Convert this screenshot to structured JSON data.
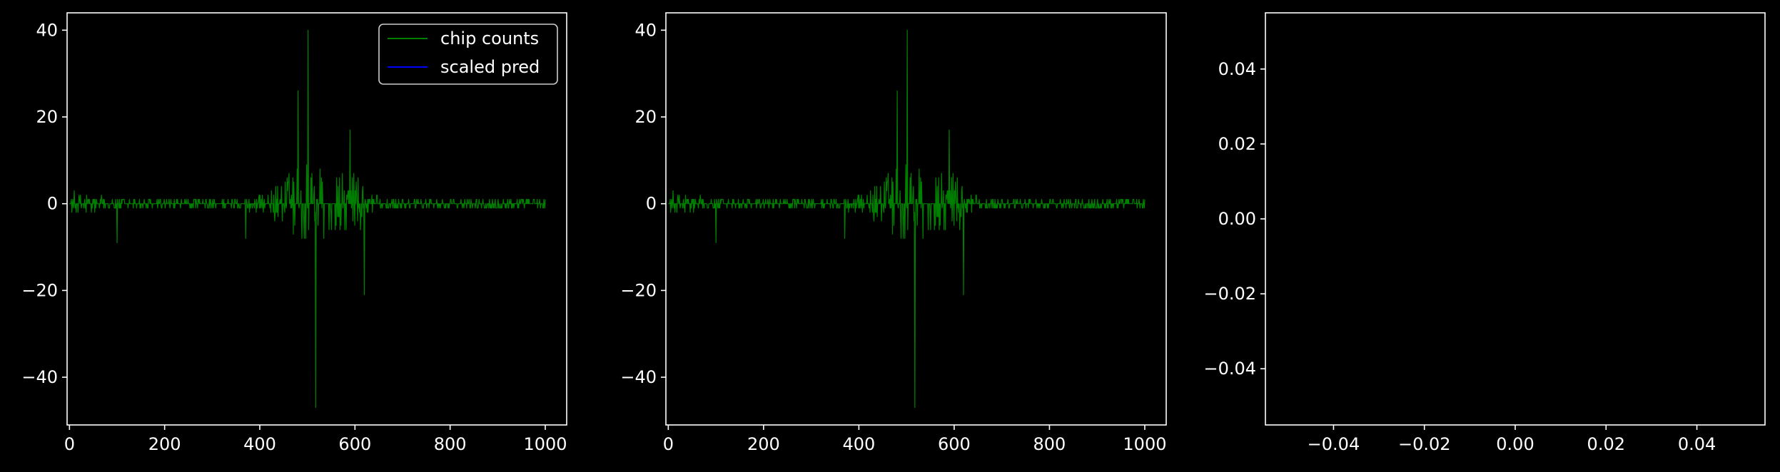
{
  "chart_data": [
    {
      "type": "line",
      "xlim": [
        -5,
        1045
      ],
      "ylim": [
        -51,
        44
      ],
      "xticks": [
        0,
        200,
        400,
        600,
        800,
        1000
      ],
      "xtick_labels": [
        "0",
        "200",
        "400",
        "600",
        "800",
        "1000"
      ],
      "yticks": [
        -40,
        -20,
        0,
        20,
        40
      ],
      "ytick_labels": [
        "−40",
        "−20",
        "0",
        "20",
        "40"
      ],
      "grid": false,
      "legend": {
        "placement": "top-right",
        "entries": [
          {
            "label": "chip counts",
            "color": "#008000"
          },
          {
            "label": "scaled pred",
            "color": "#0000ff"
          }
        ]
      },
      "series": [
        {
          "name": "chip counts",
          "color": "#008000",
          "n_points": 1000,
          "x_range": [
            0,
            1000
          ],
          "peaks": [
            {
              "x": 480,
              "y": 26
            },
            {
              "x": 502,
              "y": 40
            },
            {
              "x": 518,
              "y": -47
            },
            {
              "x": 590,
              "y": 17
            },
            {
              "x": 620,
              "y": -21
            },
            {
              "x": 370,
              "y": -8
            },
            {
              "x": 100,
              "y": -9
            }
          ]
        },
        {
          "name": "scaled pred",
          "color": "#0000ff",
          "values": []
        }
      ]
    },
    {
      "type": "line",
      "xlim": [
        -5,
        1045
      ],
      "ylim": [
        -51,
        44
      ],
      "xticks": [
        0,
        200,
        400,
        600,
        800,
        1000
      ],
      "xtick_labels": [
        "0",
        "200",
        "400",
        "600",
        "800",
        "1000"
      ],
      "yticks": [
        -40,
        -20,
        0,
        20,
        40
      ],
      "ytick_labels": [
        "−40",
        "−20",
        "0",
        "20",
        "40"
      ],
      "grid": false,
      "series": [
        {
          "color": "#008000",
          "n_points": 1000,
          "x_range": [
            0,
            1000
          ],
          "peaks": [
            {
              "x": 480,
              "y": 26
            },
            {
              "x": 502,
              "y": 40
            },
            {
              "x": 518,
              "y": -47
            },
            {
              "x": 590,
              "y": 17
            },
            {
              "x": 620,
              "y": -21
            },
            {
              "x": 370,
              "y": -8
            },
            {
              "x": 100,
              "y": -9
            }
          ]
        }
      ]
    },
    {
      "type": "line",
      "xlim": [
        -0.055,
        0.055
      ],
      "ylim": [
        -0.055,
        0.055
      ],
      "xticks": [
        -0.04,
        -0.02,
        0.0,
        0.02,
        0.04
      ],
      "xtick_labels": [
        "−0.04",
        "−0.02",
        "0.00",
        "0.02",
        "0.04"
      ],
      "yticks": [
        -0.04,
        -0.02,
        0.0,
        0.02,
        0.04
      ],
      "ytick_labels": [
        "−0.04",
        "−0.02",
        "0.00",
        "0.02",
        "0.04"
      ],
      "grid": false,
      "series": []
    }
  ]
}
